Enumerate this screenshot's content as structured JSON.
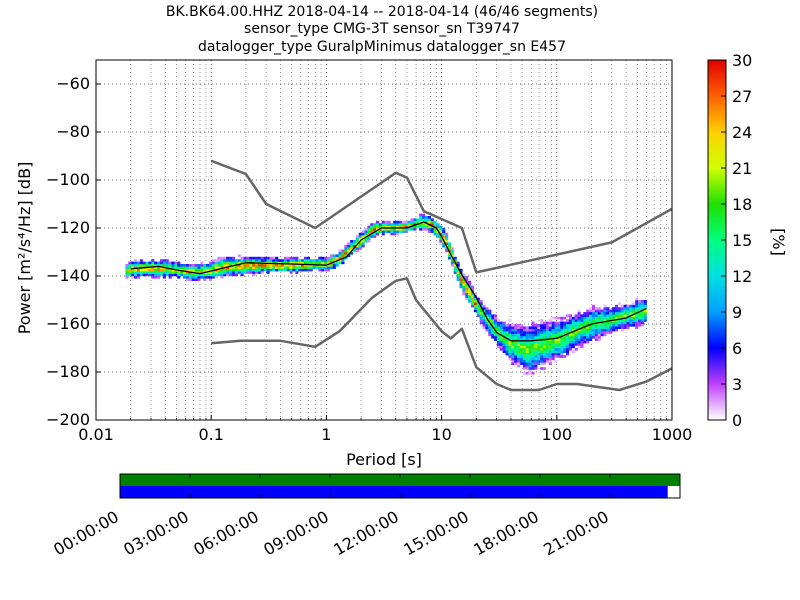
{
  "chart_data": [
    {
      "type": "heatmap",
      "title_lines": [
        "BK.BK64.00.HHZ   2018-04-14 -- 2018-04-14  (46/46 segments)",
        "sensor_type CMG-3T sensor_sn T39747",
        "datalogger_type GuralpMinimus datalogger_sn E457"
      ],
      "xlabel": "Period [s]",
      "ylabel": "Power [m²/s⁴/Hz] [dB]",
      "x_scale": "log",
      "xlim": [
        0.01,
        1000
      ],
      "ylim": [
        -200,
        -50
      ],
      "x_ticks": [
        {
          "value": 0.01,
          "label": "0.01"
        },
        {
          "value": 0.1,
          "label": "0.1"
        },
        {
          "value": 1,
          "label": "1"
        },
        {
          "value": 10,
          "label": "10"
        },
        {
          "value": 100,
          "label": "100"
        },
        {
          "value": 1000,
          "label": "1000"
        }
      ],
      "y_ticks": [
        {
          "value": -60,
          "label": "−60"
        },
        {
          "value": -80,
          "label": "−80"
        },
        {
          "value": -100,
          "label": "−100"
        },
        {
          "value": -120,
          "label": "−120"
        },
        {
          "value": -140,
          "label": "−140"
        },
        {
          "value": -160,
          "label": "−160"
        },
        {
          "value": -180,
          "label": "−180"
        },
        {
          "value": -200,
          "label": "−200"
        }
      ],
      "grid": "dotted",
      "colorbar": {
        "label": "[%]",
        "range": [
          0,
          30
        ],
        "ticks": [
          {
            "value": 0,
            "label": "0"
          },
          {
            "value": 3,
            "label": "3"
          },
          {
            "value": 6,
            "label": "6"
          },
          {
            "value": 9,
            "label": "9"
          },
          {
            "value": 12,
            "label": "12"
          },
          {
            "value": 15,
            "label": "15"
          },
          {
            "value": 18,
            "label": "18"
          },
          {
            "value": 21,
            "label": "21"
          },
          {
            "value": 24,
            "label": "24"
          },
          {
            "value": 27,
            "label": "27"
          },
          {
            "value": 30,
            "label": "30"
          }
        ]
      },
      "series": [
        {
          "style": "gray",
          "points": [
            [
              0.1,
              -92
            ],
            [
              0.2,
              -97.5
            ],
            [
              0.3,
              -110
            ],
            [
              0.8,
              -120
            ],
            [
              4,
              -97
            ],
            [
              5,
              -99
            ],
            [
              7,
              -113
            ],
            [
              15,
              -120
            ],
            [
              20,
              -138.5
            ],
            [
              300,
              -126
            ],
            [
              1000,
              -112
            ]
          ]
        },
        {
          "style": "gray",
          "points": [
            [
              0.1,
              -168
            ],
            [
              0.18,
              -167
            ],
            [
              0.4,
              -167
            ],
            [
              0.8,
              -169.5
            ],
            [
              1.3,
              -163
            ],
            [
              2.5,
              -149
            ],
            [
              4,
              -142
            ],
            [
              5,
              -141
            ],
            [
              6,
              -150
            ],
            [
              10,
              -163
            ],
            [
              12,
              -166
            ],
            [
              15,
              -162
            ],
            [
              20,
              -178
            ],
            [
              30,
              -185
            ],
            [
              40,
              -187.5
            ],
            [
              70,
              -187.5
            ],
            [
              100,
              -185
            ],
            [
              150,
              -185
            ],
            [
              350,
              -187.5
            ],
            [
              600,
              -184
            ],
            [
              1000,
              -178.5
            ]
          ]
        },
        {
          "style": "black",
          "points": [
            [
              0.02,
              -137
            ],
            [
              0.035,
              -136
            ],
            [
              0.05,
              -137.5
            ],
            [
              0.08,
              -139
            ],
            [
              0.12,
              -137
            ],
            [
              0.2,
              -134.5
            ],
            [
              0.5,
              -135
            ],
            [
              1,
              -135.5
            ],
            [
              1.5,
              -132
            ],
            [
              2,
              -125
            ],
            [
              3,
              -120
            ],
            [
              5,
              -120
            ],
            [
              7,
              -117.5
            ],
            [
              9,
              -120
            ],
            [
              10,
              -123.5
            ],
            [
              12,
              -131
            ],
            [
              15,
              -139.5
            ],
            [
              20,
              -149
            ],
            [
              25,
              -158
            ],
            [
              30,
              -163.5
            ],
            [
              40,
              -167
            ],
            [
              60,
              -167
            ],
            [
              100,
              -166
            ],
            [
              200,
              -160
            ],
            [
              400,
              -157.5
            ],
            [
              600,
              -153.5
            ]
          ]
        }
      ],
      "density_band": [
        [
          0.018,
          -135,
          -141
        ],
        [
          0.02,
          -133,
          -141
        ],
        [
          0.03,
          -133,
          -141
        ],
        [
          0.04,
          -133,
          -141
        ],
        [
          0.05,
          -134,
          -141
        ],
        [
          0.07,
          -135,
          -142
        ],
        [
          0.09,
          -134,
          -142
        ],
        [
          0.12,
          -132,
          -141
        ],
        [
          0.2,
          -131,
          -140
        ],
        [
          0.3,
          -132,
          -139
        ],
        [
          0.5,
          -132,
          -139
        ],
        [
          0.8,
          -132,
          -138
        ],
        [
          1,
          -132,
          -138
        ],
        [
          1.3,
          -129,
          -136
        ],
        [
          1.6,
          -125,
          -132
        ],
        [
          2,
          -121,
          -128
        ],
        [
          2.5,
          -117,
          -124
        ],
        [
          3,
          -117,
          -123
        ],
        [
          4,
          -117,
          -123
        ],
        [
          5,
          -117,
          -122
        ],
        [
          6.5,
          -114,
          -121
        ],
        [
          8,
          -115,
          -122
        ],
        [
          10,
          -119,
          -128
        ],
        [
          12,
          -127,
          -136
        ],
        [
          14,
          -136,
          -145
        ],
        [
          17,
          -142,
          -152
        ],
        [
          20,
          -148,
          -158
        ],
        [
          25,
          -153,
          -165
        ],
        [
          30,
          -157,
          -170
        ],
        [
          40,
          -159,
          -178
        ],
        [
          55,
          -159,
          -182
        ],
        [
          70,
          -158,
          -180
        ],
        [
          100,
          -157,
          -176
        ],
        [
          150,
          -154,
          -171
        ],
        [
          200,
          -152,
          -168
        ],
        [
          300,
          -152,
          -164
        ],
        [
          400,
          -151,
          -162
        ],
        [
          500,
          -149,
          -162
        ],
        [
          600,
          -149,
          -160
        ]
      ]
    },
    {
      "type": "timeline",
      "tick_labels": [
        "00:00:00",
        "03:00:00",
        "06:00:00",
        "09:00:00",
        "12:00:00",
        "15:00:00",
        "18:00:00",
        "21:00:00"
      ],
      "coverage_top_fraction": 1.0,
      "coverage_bottom_fraction": 0.978,
      "colors": {
        "top": "#008000",
        "bottom": "#0000ff"
      }
    }
  ]
}
